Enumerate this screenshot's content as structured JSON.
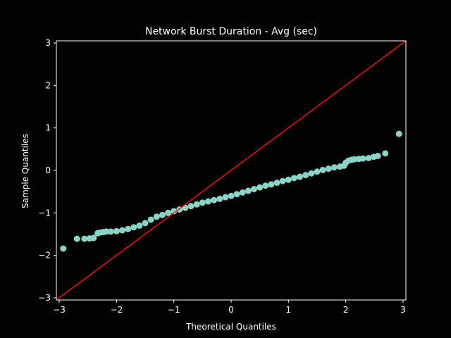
{
  "chart_data": {
    "type": "scatter",
    "title": "Network Burst Duration - Avg (sec)",
    "xlabel": "Theoretical Quantiles",
    "ylabel": "Sample Quantiles",
    "xlim": [
      -3.05,
      3.05
    ],
    "ylim": [
      -3.05,
      3.05
    ],
    "xticks": [
      -3,
      -2,
      -1,
      0,
      1,
      2,
      3
    ],
    "yticks": [
      -3,
      -2,
      -1,
      0,
      1,
      2,
      3
    ],
    "grid": false,
    "legend": "none",
    "colors": {
      "background": "#000000",
      "points": "#8dd3c7",
      "reference_line": "#e41a1c",
      "axes": "#ffffff"
    },
    "reference_line": {
      "x": [
        -3.05,
        3.05
      ],
      "y": [
        -3.05,
        3.05
      ]
    },
    "points": {
      "x": [
        -2.93,
        -2.69,
        -2.56,
        -2.47,
        -2.4,
        -2.33,
        -2.28,
        -2.23,
        -2.18,
        -2.1,
        -2.0,
        -1.9,
        -1.8,
        -1.7,
        -1.6,
        -1.5,
        -1.4,
        -1.3,
        -1.2,
        -1.1,
        -1.0,
        -0.9,
        -0.8,
        -0.7,
        -0.6,
        -0.5,
        -0.4,
        -0.3,
        -0.2,
        -0.1,
        0.0,
        0.1,
        0.2,
        0.3,
        0.4,
        0.5,
        0.6,
        0.7,
        0.8,
        0.9,
        1.0,
        1.1,
        1.2,
        1.3,
        1.4,
        1.5,
        1.6,
        1.7,
        1.8,
        1.9,
        1.97,
        2.0,
        2.05,
        2.1,
        2.15,
        2.23,
        2.3,
        2.4,
        2.49,
        2.56,
        2.69,
        2.93
      ],
      "y": [
        -1.84,
        -1.61,
        -1.61,
        -1.6,
        -1.59,
        -1.48,
        -1.46,
        -1.45,
        -1.44,
        -1.44,
        -1.43,
        -1.41,
        -1.38,
        -1.34,
        -1.3,
        -1.24,
        -1.16,
        -1.09,
        -1.05,
        -1.0,
        -0.96,
        -0.92,
        -0.88,
        -0.84,
        -0.8,
        -0.76,
        -0.73,
        -0.7,
        -0.67,
        -0.63,
        -0.6,
        -0.56,
        -0.52,
        -0.48,
        -0.44,
        -0.4,
        -0.36,
        -0.33,
        -0.29,
        -0.25,
        -0.22,
        -0.18,
        -0.15,
        -0.11,
        -0.07,
        -0.03,
        0.01,
        0.04,
        0.07,
        0.09,
        0.11,
        0.18,
        0.23,
        0.25,
        0.26,
        0.27,
        0.28,
        0.29,
        0.32,
        0.34,
        0.4,
        0.86
      ]
    }
  }
}
